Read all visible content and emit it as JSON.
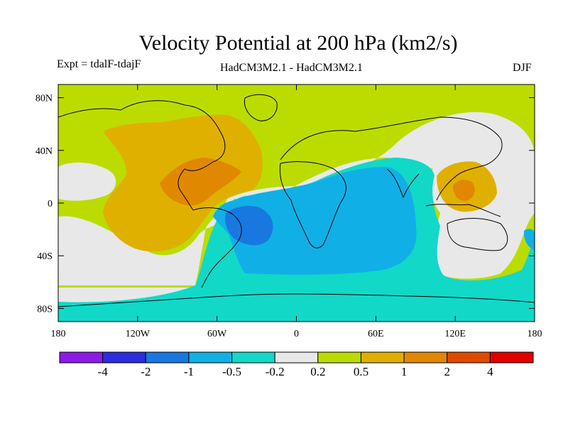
{
  "title": "Velocity Potential at 200 hPa (km2/s)",
  "subtitle_left": "Expt = tdalF-tdajF",
  "subtitle_center": "HadCM3M2.1 - HadCM3M2.1",
  "subtitle_right": "DJF",
  "map": {
    "lon_range": [
      -180,
      180
    ],
    "lat_range": [
      -90,
      90
    ],
    "lat_ticks": [
      {
        "value": 80,
        "label": "80N"
      },
      {
        "value": 40,
        "label": "40N"
      },
      {
        "value": 0,
        "label": "0"
      },
      {
        "value": -40,
        "label": "40S"
      },
      {
        "value": -80,
        "label": "80S"
      }
    ],
    "lon_ticks": [
      {
        "value": -180,
        "label": "180"
      },
      {
        "value": -120,
        "label": "120W"
      },
      {
        "value": -60,
        "label": "60W"
      },
      {
        "value": 0,
        "label": "0"
      },
      {
        "value": 60,
        "label": "60E"
      },
      {
        "value": 120,
        "label": "120E"
      },
      {
        "value": 180,
        "label": "180"
      }
    ]
  },
  "colorbar": {
    "colors": [
      "#8c1ae6",
      "#2a2ee0",
      "#1878e0",
      "#10b0e6",
      "#12d8c8",
      "#e8e8e8",
      "#bcdc00",
      "#e0b000",
      "#e08800",
      "#e04a00",
      "#e00000"
    ],
    "labels": [
      "-4",
      "-2",
      "-1",
      "-0.5",
      "-0.2",
      "0.2",
      "0.5",
      "1",
      "2",
      "4"
    ]
  }
}
